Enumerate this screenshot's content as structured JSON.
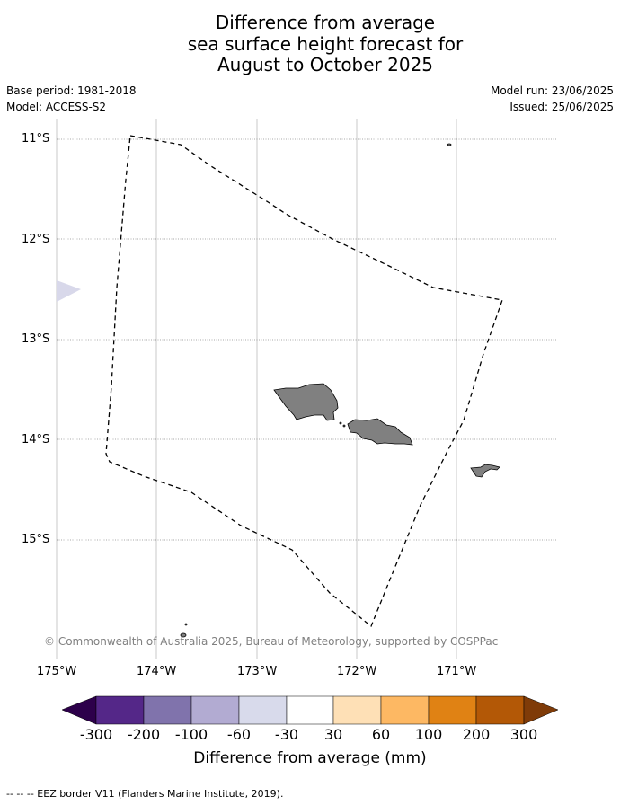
{
  "title_lines": [
    "Difference from average",
    "sea surface height forecast for",
    "August to October 2025"
  ],
  "meta": {
    "base_period": "Base period: 1981-2018",
    "model": "Model: ACCESS-S2",
    "model_run": "Model run: 23/06/2025",
    "issued": "Issued: 25/06/2025"
  },
  "map": {
    "lat_ticks": [
      "11°S",
      "12°S",
      "13°S",
      "14°S",
      "15°S"
    ],
    "lon_ticks": [
      "175°W",
      "174°W",
      "173°W",
      "172°W",
      "171°W"
    ],
    "lat_range": [
      -16.1,
      -10.85
    ],
    "lon_range": [
      -175.0,
      -170.0
    ],
    "land_color": "#808080",
    "eez_line": "dashed black",
    "shading": [
      {
        "category": "-60 to -30",
        "color": "#d8d8ea",
        "location": "west edge near 12.5°S"
      }
    ],
    "copyright": "© Commonwealth of Australia 2025, Bureau of Meteorology, supported by COSPPac"
  },
  "colorbar": {
    "title": "Difference from average (mm)",
    "labels": [
      "-300",
      "-200",
      "-100",
      "-60",
      "-30",
      "30",
      "60",
      "100",
      "200",
      "300"
    ],
    "colors": [
      "#2d004b",
      "#542788",
      "#8073ac",
      "#b2abd2",
      "#d8daeb",
      "#ffffff",
      "#fee0b6",
      "#fdb863",
      "#e08214",
      "#b35806",
      "#7f3b08"
    ]
  },
  "footnote": "--  --  -- EEZ border V11 (Flanders Marine Institute, 2019)."
}
